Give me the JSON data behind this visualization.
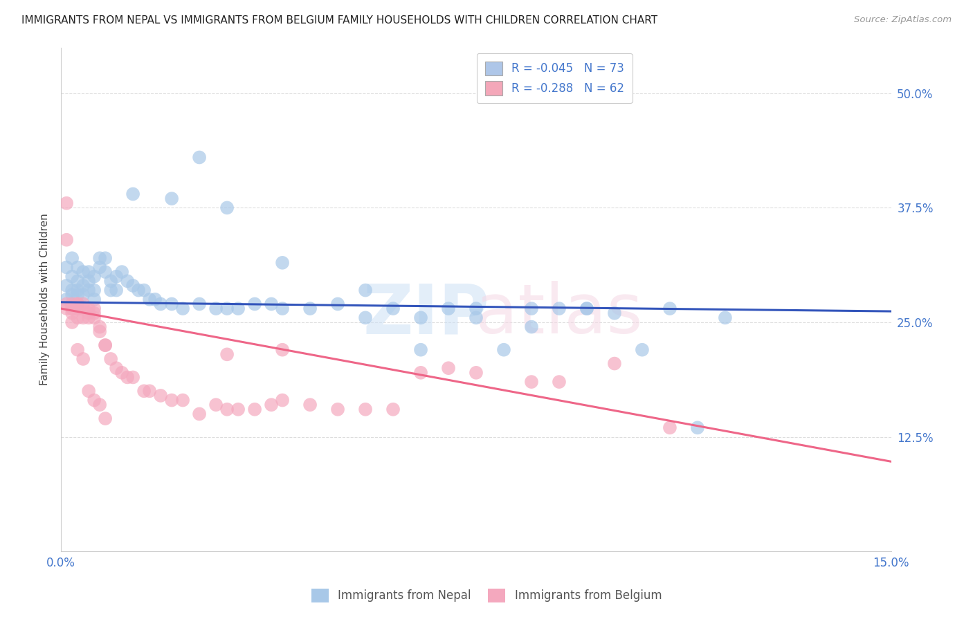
{
  "title": "IMMIGRANTS FROM NEPAL VS IMMIGRANTS FROM BELGIUM FAMILY HOUSEHOLDS WITH CHILDREN CORRELATION CHART",
  "source": "Source: ZipAtlas.com",
  "ylabel": "Family Households with Children",
  "xlim": [
    0.0,
    0.15
  ],
  "ylim": [
    0.0,
    0.55
  ],
  "xtick_positions": [
    0.0,
    0.025,
    0.05,
    0.075,
    0.1,
    0.125,
    0.15
  ],
  "xtick_labels": [
    "0.0%",
    "",
    "",
    "",
    "",
    "",
    "15.0%"
  ],
  "ytick_positions": [
    0.0,
    0.125,
    0.25,
    0.375,
    0.5
  ],
  "ytick_labels": [
    "",
    "12.5%",
    "25.0%",
    "37.5%",
    "50.0%"
  ],
  "nepal_color": "#a8c8e8",
  "belgium_color": "#f4a8be",
  "nepal_line_color": "#3355bb",
  "belgium_line_color": "#ee6688",
  "legend_nepal_label": "R = -0.045   N = 73",
  "legend_belgium_label": "R = -0.288   N = 62",
  "legend_nepal_box_color": "#aec6e8",
  "legend_belgium_box_color": "#f4a7b9",
  "background_color": "#ffffff",
  "grid_color": "#dddddd",
  "title_color": "#222222",
  "tick_color": "#4477cc",
  "nepal_scatter_x": [
    0.001,
    0.001,
    0.001,
    0.002,
    0.002,
    0.002,
    0.002,
    0.002,
    0.003,
    0.003,
    0.003,
    0.003,
    0.003,
    0.004,
    0.004,
    0.004,
    0.005,
    0.005,
    0.005,
    0.006,
    0.006,
    0.006,
    0.007,
    0.007,
    0.008,
    0.008,
    0.009,
    0.009,
    0.01,
    0.01,
    0.011,
    0.012,
    0.013,
    0.014,
    0.015,
    0.016,
    0.017,
    0.018,
    0.02,
    0.022,
    0.025,
    0.028,
    0.03,
    0.032,
    0.035,
    0.038,
    0.04,
    0.045,
    0.05,
    0.055,
    0.06,
    0.065,
    0.07,
    0.075,
    0.08,
    0.085,
    0.09,
    0.095,
    0.1,
    0.11,
    0.12,
    0.013,
    0.02,
    0.025,
    0.03,
    0.04,
    0.055,
    0.065,
    0.075,
    0.085,
    0.095,
    0.105,
    0.115
  ],
  "nepal_scatter_y": [
    0.275,
    0.29,
    0.31,
    0.28,
    0.285,
    0.3,
    0.32,
    0.27,
    0.285,
    0.295,
    0.31,
    0.28,
    0.27,
    0.29,
    0.305,
    0.28,
    0.305,
    0.295,
    0.285,
    0.3,
    0.285,
    0.275,
    0.32,
    0.31,
    0.305,
    0.32,
    0.295,
    0.285,
    0.3,
    0.285,
    0.305,
    0.295,
    0.29,
    0.285,
    0.285,
    0.275,
    0.275,
    0.27,
    0.27,
    0.265,
    0.27,
    0.265,
    0.265,
    0.265,
    0.27,
    0.27,
    0.265,
    0.265,
    0.27,
    0.255,
    0.265,
    0.255,
    0.265,
    0.265,
    0.22,
    0.265,
    0.265,
    0.265,
    0.26,
    0.265,
    0.255,
    0.39,
    0.385,
    0.43,
    0.375,
    0.315,
    0.285,
    0.22,
    0.255,
    0.245,
    0.265,
    0.22,
    0.135
  ],
  "belgium_scatter_x": [
    0.001,
    0.001,
    0.001,
    0.002,
    0.002,
    0.002,
    0.002,
    0.003,
    0.003,
    0.003,
    0.003,
    0.004,
    0.004,
    0.004,
    0.005,
    0.005,
    0.005,
    0.006,
    0.006,
    0.006,
    0.007,
    0.007,
    0.008,
    0.008,
    0.009,
    0.01,
    0.011,
    0.012,
    0.013,
    0.015,
    0.016,
    0.018,
    0.02,
    0.022,
    0.025,
    0.028,
    0.03,
    0.032,
    0.035,
    0.038,
    0.04,
    0.045,
    0.05,
    0.055,
    0.06,
    0.065,
    0.07,
    0.075,
    0.085,
    0.09,
    0.1,
    0.11,
    0.001,
    0.002,
    0.003,
    0.004,
    0.005,
    0.006,
    0.007,
    0.008,
    0.03,
    0.04
  ],
  "belgium_scatter_y": [
    0.34,
    0.27,
    0.265,
    0.265,
    0.25,
    0.265,
    0.27,
    0.27,
    0.255,
    0.265,
    0.27,
    0.255,
    0.265,
    0.27,
    0.255,
    0.265,
    0.26,
    0.265,
    0.255,
    0.26,
    0.245,
    0.24,
    0.225,
    0.225,
    0.21,
    0.2,
    0.195,
    0.19,
    0.19,
    0.175,
    0.175,
    0.17,
    0.165,
    0.165,
    0.15,
    0.16,
    0.155,
    0.155,
    0.155,
    0.16,
    0.165,
    0.16,
    0.155,
    0.155,
    0.155,
    0.195,
    0.2,
    0.195,
    0.185,
    0.185,
    0.205,
    0.135,
    0.38,
    0.26,
    0.22,
    0.21,
    0.175,
    0.165,
    0.16,
    0.145,
    0.215,
    0.22
  ]
}
